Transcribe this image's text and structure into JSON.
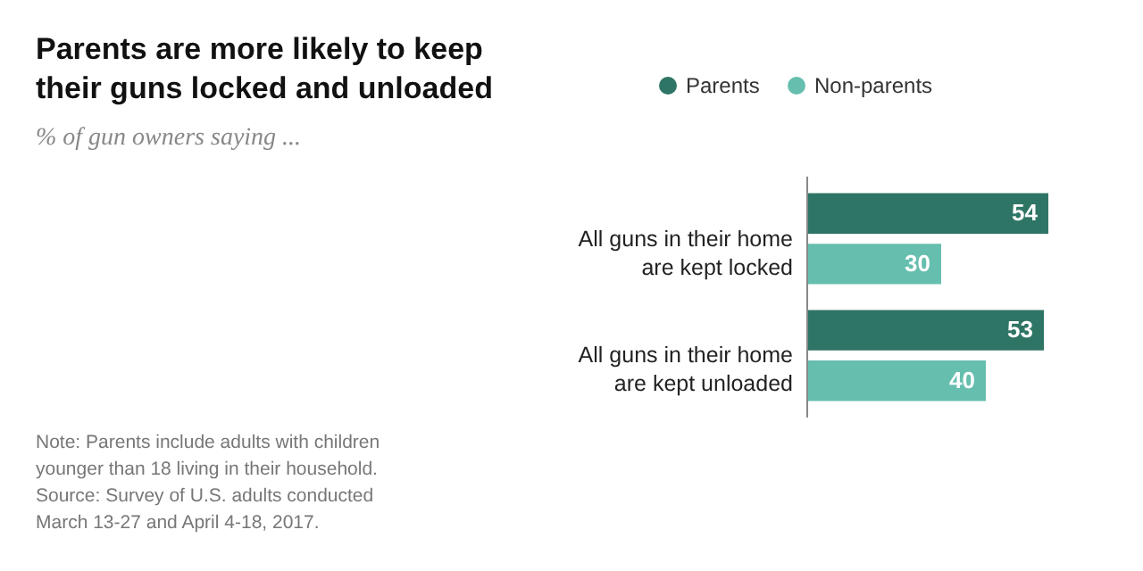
{
  "chart_data": {
    "type": "bar",
    "orientation": "horizontal",
    "title": "Parents are more likely to keep their guns locked and unloaded",
    "subtitle": "% of gun owners saying ...",
    "categories": [
      "All guns in their home are kept locked",
      "All guns in their home are kept unloaded"
    ],
    "series": [
      {
        "name": "Parents",
        "color": "#2f7565",
        "values": [
          54,
          53
        ]
      },
      {
        "name": "Non-parents",
        "color": "#66bfae",
        "values": [
          30,
          40
        ]
      }
    ],
    "data_labels": true,
    "legend": "top",
    "annotations": [
      "Note: Parents include adults with children younger than 18 living in their household.",
      "Source: Survey of U.S. adults conducted March 13-27 and April 4-18, 2017."
    ]
  }
}
